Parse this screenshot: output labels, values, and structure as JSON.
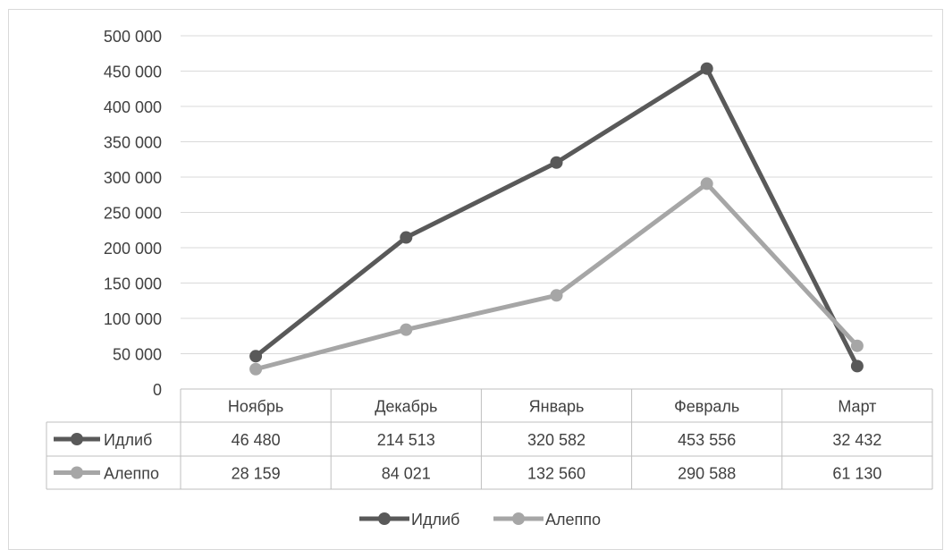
{
  "chart_data": {
    "type": "line",
    "categories": [
      "Ноябрь",
      "Декабрь",
      "Январь",
      "Февраль",
      "Март"
    ],
    "series": [
      {
        "name": "Идлиб",
        "values": [
          46480,
          214513,
          320582,
          453556,
          32432
        ],
        "labels": [
          "46 480",
          "214 513",
          "320 582",
          "453 556",
          "32 432"
        ],
        "color": "#595959"
      },
      {
        "name": "Алеппо",
        "values": [
          28159,
          84021,
          132560,
          290588,
          61130
        ],
        "labels": [
          "28 159",
          "84 021",
          "132 560",
          "290 588",
          "61 130"
        ],
        "color": "#a6a6a6"
      }
    ],
    "ylim": [
      0,
      500000
    ],
    "y_ticks": [
      "0",
      "50 000",
      "100 000",
      "150 000",
      "200 000",
      "250 000",
      "300 000",
      "350 000",
      "400 000",
      "450 000",
      "500 000"
    ],
    "grid": true,
    "data_table": true,
    "legend_position": "bottom",
    "title": "",
    "xlabel": "",
    "ylabel": ""
  }
}
